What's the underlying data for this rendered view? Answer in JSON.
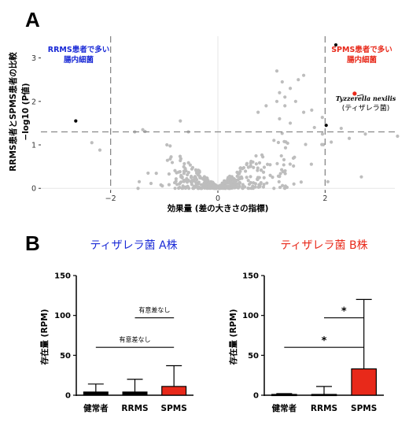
{
  "panels": {
    "a_label": "A",
    "b_label": "B"
  },
  "chart_data": [
    {
      "type": "scatter",
      "title": "",
      "xlabel": "効果量 (差の大きさの指標)",
      "ylabel": "RRMS患者とSPMS患者の比較",
      "ylabel2": "−log10 (P値)",
      "xlim": [
        -3.3,
        3.3
      ],
      "ylim": [
        -0.05,
        3.5
      ],
      "xticks": [
        "−2",
        "0",
        "2"
      ],
      "yticks": [
        "0",
        "1",
        "2",
        "3"
      ],
      "threshold_y": 1.3,
      "threshold_x": [
        -2,
        2
      ],
      "annotation_left": [
        "RRMS患者で多い",
        "腸内細菌"
      ],
      "annotation_right": [
        "SPMS患者で多い",
        "腸内細菌"
      ],
      "highlight": {
        "x": 2.55,
        "y": 2.18,
        "name": "Tyzzerella nexilis",
        "name_jp": "(ティザレラ菌)"
      },
      "sig_points": [
        {
          "x": -2.65,
          "y": 1.55
        },
        {
          "x": 2.2,
          "y": 3.3
        },
        {
          "x": 2.02,
          "y": 1.45
        }
      ],
      "grey_outer": [
        [
          -2.35,
          1.05
        ],
        [
          -2.2,
          0.88
        ],
        [
          -1.55,
          1.3
        ],
        [
          -1.4,
          1.35
        ],
        [
          2.3,
          1.38
        ],
        [
          2.45,
          1.15
        ],
        [
          2.75,
          1.25
        ],
        [
          3.35,
          1.2
        ],
        [
          1.1,
          2.7
        ],
        [
          1.15,
          2.2
        ],
        [
          1.2,
          2.45
        ],
        [
          1.25,
          2.1
        ],
        [
          1.35,
          2.3
        ],
        [
          1.5,
          2.5
        ],
        [
          1.6,
          2.6
        ],
        [
          1.1,
          2.0
        ],
        [
          1.25,
          1.9
        ],
        [
          1.45,
          2.0
        ],
        [
          1.6,
          1.75
        ],
        [
          1.75,
          1.8
        ],
        [
          1.35,
          1.5
        ],
        [
          1.15,
          1.6
        ],
        [
          1.8,
          1.4
        ],
        [
          1.95,
          1.25
        ],
        [
          0.9,
          1.9
        ],
        [
          0.75,
          1.75
        ],
        [
          -0.7,
          1.55
        ],
        [
          -0.55,
          1.3
        ],
        [
          -0.95,
          1.0
        ]
      ],
      "grey_cloud_seed": 7,
      "grey_cloud_count": 420
    },
    {
      "type": "bar",
      "title": "ティザレラ菌 A株",
      "title_color": "#1a2ad6",
      "categories": [
        "健常者",
        "RRMS",
        "SPMS"
      ],
      "values": [
        4,
        4,
        11
      ],
      "errors": [
        14,
        20,
        37
      ],
      "bar_colors": [
        "#000000",
        "#000000",
        "#e8291a"
      ],
      "ylabel": "存在量 (RPM)",
      "ylim": [
        0,
        150
      ],
      "yticks": [
        "0",
        "50",
        "100",
        "150"
      ],
      "comparisons": [
        {
          "from": 0,
          "to": 2,
          "level": 60,
          "label": "有意差なし"
        },
        {
          "from": 1,
          "to": 2,
          "level": 97,
          "label": "有意差なし"
        }
      ]
    },
    {
      "type": "bar",
      "title": "ティザレラ菌 B株",
      "title_color": "#e8291a",
      "categories": [
        "健常者",
        "RRMS",
        "SPMS"
      ],
      "values": [
        1,
        1,
        33
      ],
      "errors": [
        2,
        11,
        120
      ],
      "bar_colors": [
        "#000000",
        "#000000",
        "#e8291a"
      ],
      "ylabel": "存在量 (RPM)",
      "ylim": [
        0,
        150
      ],
      "yticks": [
        "0",
        "50",
        "100",
        "150"
      ],
      "comparisons": [
        {
          "from": 0,
          "to": 2,
          "level": 60,
          "label": "*"
        },
        {
          "from": 1,
          "to": 2,
          "level": 97,
          "label": "*"
        }
      ]
    }
  ]
}
